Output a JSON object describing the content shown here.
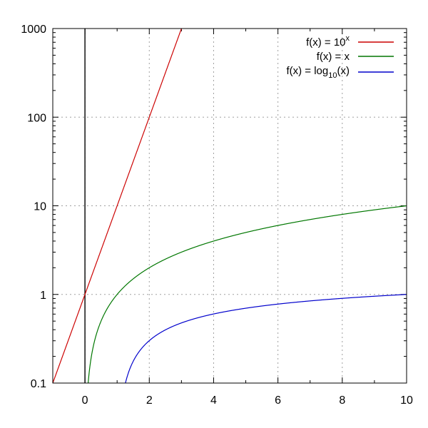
{
  "chart_data": {
    "type": "line",
    "title": "",
    "xlabel": "",
    "ylabel": "",
    "xlim": [
      -1,
      10
    ],
    "ylim": [
      0.1,
      1000
    ],
    "yscale": "log",
    "grid": true,
    "legend_position": "top-right",
    "x_ticks": [
      0,
      2,
      4,
      6,
      8,
      10
    ],
    "x_tick_labels": [
      "0",
      "2",
      "4",
      "6",
      "8",
      "10"
    ],
    "y_ticks": [
      0.1,
      1,
      10,
      100,
      1000
    ],
    "y_tick_labels": [
      "0.1",
      "1",
      "10",
      "100",
      "1000"
    ],
    "series": [
      {
        "name": "f(x) = 10^x",
        "legend_main": "f(x) = 10",
        "legend_sup": "x",
        "color": "#cc0000",
        "function": "pow10",
        "x": [
          -1,
          0,
          1,
          2,
          3
        ],
        "values": [
          0.1,
          1,
          10,
          100,
          1000
        ]
      },
      {
        "name": "f(x) = x",
        "legend_main": "f(x) = x",
        "color": "#007700",
        "function": "identity",
        "x": [
          0.1,
          0.5,
          1,
          2,
          4,
          6,
          8,
          10
        ],
        "values": [
          0.1,
          0.5,
          1,
          2,
          4,
          6,
          8,
          10
        ]
      },
      {
        "name": "f(x) = log10(x)",
        "legend_main": "f(x) = log",
        "legend_sub": "10",
        "legend_tail": "(x)",
        "color": "#0000cc",
        "function": "log10",
        "x": [
          1.259,
          2,
          4,
          6,
          8,
          10
        ],
        "values": [
          0.1,
          0.301,
          0.602,
          0.778,
          0.903,
          1
        ]
      }
    ],
    "zero_line_color": "#000000",
    "grid_color": "#a0a0a0"
  }
}
